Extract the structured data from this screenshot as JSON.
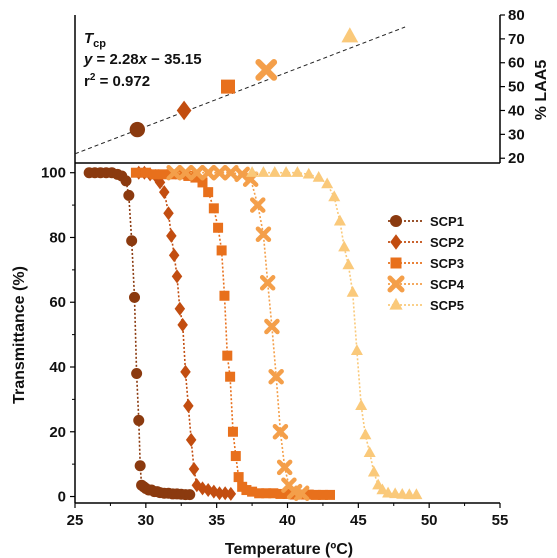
{
  "chart_data": [
    {
      "type": "scatter",
      "panel": "inset",
      "ylabel": "% LAA5",
      "ylim": [
        18,
        80
      ],
      "yticks": [
        20,
        30,
        40,
        50,
        60,
        70,
        80
      ],
      "annotation": {
        "title_main": "T",
        "title_sub": "cp",
        "equation": {
          "y": "y",
          "rhs_1": " = 2.28",
          "x": "x",
          "rhs_2": " − 35.15"
        },
        "r2": {
          "r": "r",
          "sup": "2",
          "rest": " = 0.972"
        }
      },
      "fit": {
        "slope": 2.28,
        "intercept": -35.15
      },
      "points": [
        {
          "series": "SCP1",
          "x": 29.4,
          "y": 32
        },
        {
          "series": "SCP2",
          "x": 32.7,
          "y": 40
        },
        {
          "series": "SCP3",
          "x": 35.8,
          "y": 50
        },
        {
          "series": "SCP4",
          "x": 38.5,
          "y": 57
        },
        {
          "series": "SCP5",
          "x": 44.4,
          "y": 71
        }
      ]
    },
    {
      "type": "line",
      "panel": "main",
      "xlabel": "Temperature (ºC)",
      "ylabel": "Transmittance (%)",
      "xlim": [
        25,
        55
      ],
      "ylim": [
        -2,
        103
      ],
      "xticks": [
        25,
        30,
        35,
        40,
        45,
        50,
        55
      ],
      "yticks": [
        0,
        20,
        40,
        60,
        80,
        100
      ],
      "legend_position": "right",
      "series": [
        {
          "name": "SCP1",
          "color": "#8b3a0f",
          "marker": "circle",
          "x": [
            26.0,
            26.4,
            26.8,
            27.2,
            27.6,
            28.0,
            28.3,
            28.6,
            28.8,
            29.0,
            29.2,
            29.35,
            29.5,
            29.6,
            29.7,
            29.85,
            30.0,
            30.2,
            30.4,
            30.6,
            30.8,
            31.0,
            31.3,
            31.6,
            31.9,
            32.2,
            32.5,
            32.8,
            33.1
          ],
          "y": [
            100,
            100,
            100,
            100,
            100,
            99.5,
            99,
            97.5,
            93,
            79,
            61.5,
            38,
            23.5,
            9.5,
            3.5,
            3,
            2.5,
            2,
            2,
            1.5,
            1.5,
            1.2,
            1,
            1,
            0.8,
            0.8,
            0.7,
            0.6,
            0.6
          ]
        },
        {
          "name": "SCP2",
          "color": "#c24d10",
          "marker": "diamond",
          "x": [
            29.5,
            29.9,
            30.3,
            30.7,
            31.0,
            31.3,
            31.6,
            31.8,
            32.0,
            32.2,
            32.4,
            32.6,
            32.8,
            33.0,
            33.2,
            33.4,
            33.6,
            34.0,
            34.4,
            34.8,
            35.2,
            35.6,
            36.0
          ],
          "y": [
            100,
            100,
            99.5,
            99,
            97,
            94,
            87.5,
            80.5,
            74.5,
            68,
            58,
            53,
            38.5,
            28,
            17.5,
            8.5,
            3.5,
            2.5,
            2,
            1.5,
            1,
            1,
            0.8
          ]
        },
        {
          "name": "SCP3",
          "color": "#e8701c",
          "marker": "square",
          "x": [
            29.3,
            30.0,
            30.6,
            31.2,
            31.8,
            32.4,
            33.0,
            33.5,
            34.0,
            34.4,
            34.8,
            35.1,
            35.35,
            35.55,
            35.75,
            35.95,
            36.15,
            36.35,
            36.55,
            36.8,
            37.1,
            37.5,
            38.0,
            38.5,
            39.0,
            39.5,
            40.0,
            40.5,
            41.0,
            41.5,
            42.0,
            42.5,
            43.0
          ],
          "y": [
            100,
            100,
            99.5,
            99.5,
            99.5,
            99.5,
            99,
            98.5,
            97,
            94,
            89,
            83,
            76,
            62,
            43.5,
            37,
            20,
            12.5,
            6,
            3,
            2,
            1.5,
            1,
            1,
            1,
            0.8,
            0.8,
            0.6,
            0.6,
            0.6,
            0.5,
            0.5,
            0.5
          ]
        },
        {
          "name": "SCP4",
          "color": "#f49f4a",
          "marker": "cross",
          "x": [
            32.0,
            32.8,
            33.6,
            34.4,
            35.2,
            36.0,
            36.8,
            37.4,
            37.9,
            38.3,
            38.6,
            38.9,
            39.2,
            39.5,
            39.8,
            40.1,
            40.5,
            41.0
          ],
          "y": [
            100,
            100,
            100,
            100,
            100,
            100,
            99.5,
            98,
            90,
            81,
            66,
            52.5,
            37,
            20,
            9,
            3.5,
            1.5,
            1
          ]
        },
        {
          "name": "SCP5",
          "color": "#fac97a",
          "marker": "triangle",
          "x": [
            37.5,
            38.3,
            39.1,
            39.9,
            40.7,
            41.5,
            42.2,
            42.8,
            43.3,
            43.7,
            44.0,
            44.3,
            44.6,
            44.9,
            45.2,
            45.5,
            45.8,
            46.1,
            46.4,
            46.7,
            47.1,
            47.6,
            48.1,
            48.6,
            49.1
          ],
          "y": [
            100,
            100,
            100,
            100,
            100,
            99.5,
            98.5,
            96.5,
            92.5,
            85,
            77,
            71.5,
            63,
            45,
            28,
            19,
            13.5,
            7.5,
            3.5,
            2,
            1,
            0.8,
            0.6,
            0.5,
            0.5
          ]
        }
      ]
    }
  ]
}
